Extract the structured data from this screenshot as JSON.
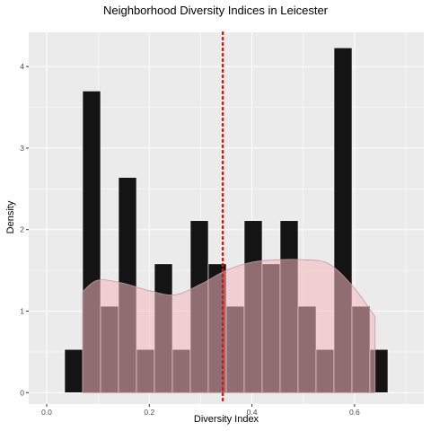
{
  "chart_data": {
    "type": "histogram",
    "title": "Neighborhood Diversity Indices in Leicester",
    "xlabel": "Diversity Index",
    "ylabel": "Density",
    "xlim": [
      -0.035,
      0.735
    ],
    "ylim": [
      -0.14,
      4.42
    ],
    "x_ticks": [
      0.0,
      0.2,
      0.4,
      0.6
    ],
    "x_tick_labels": [
      "0.0",
      "0.2",
      "0.4",
      "0.6"
    ],
    "y_ticks": [
      0,
      1,
      2,
      3,
      4
    ],
    "y_tick_labels": [
      "0",
      "1",
      "2",
      "3",
      "4"
    ],
    "bin_width": 0.035,
    "bin_centers": [
      0.0525,
      0.0875,
      0.1225,
      0.1575,
      0.1925,
      0.2275,
      0.2625,
      0.2975,
      0.3325,
      0.3675,
      0.4025,
      0.4375,
      0.4725,
      0.5075,
      0.5425,
      0.5775,
      0.6125,
      0.6475
    ],
    "values": [
      0.53,
      3.7,
      1.06,
      2.64,
      0.53,
      1.58,
      0.53,
      2.11,
      1.58,
      1.06,
      2.11,
      1.58,
      2.11,
      1.06,
      0.53,
      4.23,
      1.06,
      0.53
    ],
    "density_curve": {
      "x": [
        0.07,
        0.1,
        0.15,
        0.2,
        0.25,
        0.3,
        0.35,
        0.4,
        0.45,
        0.5,
        0.55,
        0.6,
        0.64
      ],
      "y": [
        1.24,
        1.38,
        1.34,
        1.25,
        1.2,
        1.33,
        1.5,
        1.6,
        1.63,
        1.63,
        1.58,
        1.28,
        0.93
      ]
    },
    "mean_line": 0.343,
    "grid": true,
    "legend": "none",
    "colors": {
      "panel_background": "#ebebeb",
      "grid_major": "#ffffff",
      "bar_fill": "#141414",
      "bar_outline": "#ffffff",
      "density_fill": "#f4b6be",
      "density_outline": "#c09aa0",
      "mean_line": "#ff0000",
      "axis_text": "#4d4d4d",
      "tick": "#333333"
    }
  }
}
